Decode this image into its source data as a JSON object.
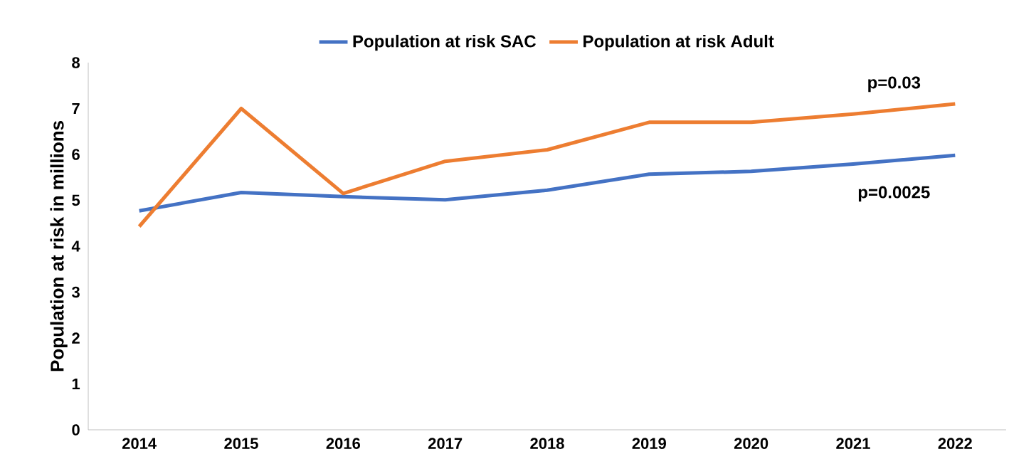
{
  "chart_data": {
    "type": "line",
    "ylabel": "Population at risk in millions",
    "categories": [
      "2014",
      "2015",
      "2016",
      "2017",
      "2018",
      "2019",
      "2020",
      "2021",
      "2022"
    ],
    "series": [
      {
        "name": "Population at risk SAC",
        "color": "#4472c4",
        "values": [
          4.77,
          5.17,
          5.08,
          5.01,
          5.22,
          5.57,
          5.63,
          5.79,
          5.98
        ]
      },
      {
        "name": "Population at risk Adult",
        "color": "#ed7d31",
        "values": [
          4.43,
          7.0,
          5.15,
          5.85,
          6.1,
          6.7,
          6.7,
          6.88,
          7.1
        ]
      }
    ],
    "ylim": [
      0,
      8
    ],
    "yticks": [
      0,
      1,
      2,
      3,
      4,
      5,
      6,
      7,
      8
    ],
    "grid": false,
    "legend": "top",
    "marker": "none",
    "line_style": "solid",
    "annotations": [
      "p=0.03",
      "p=0.0025"
    ]
  }
}
